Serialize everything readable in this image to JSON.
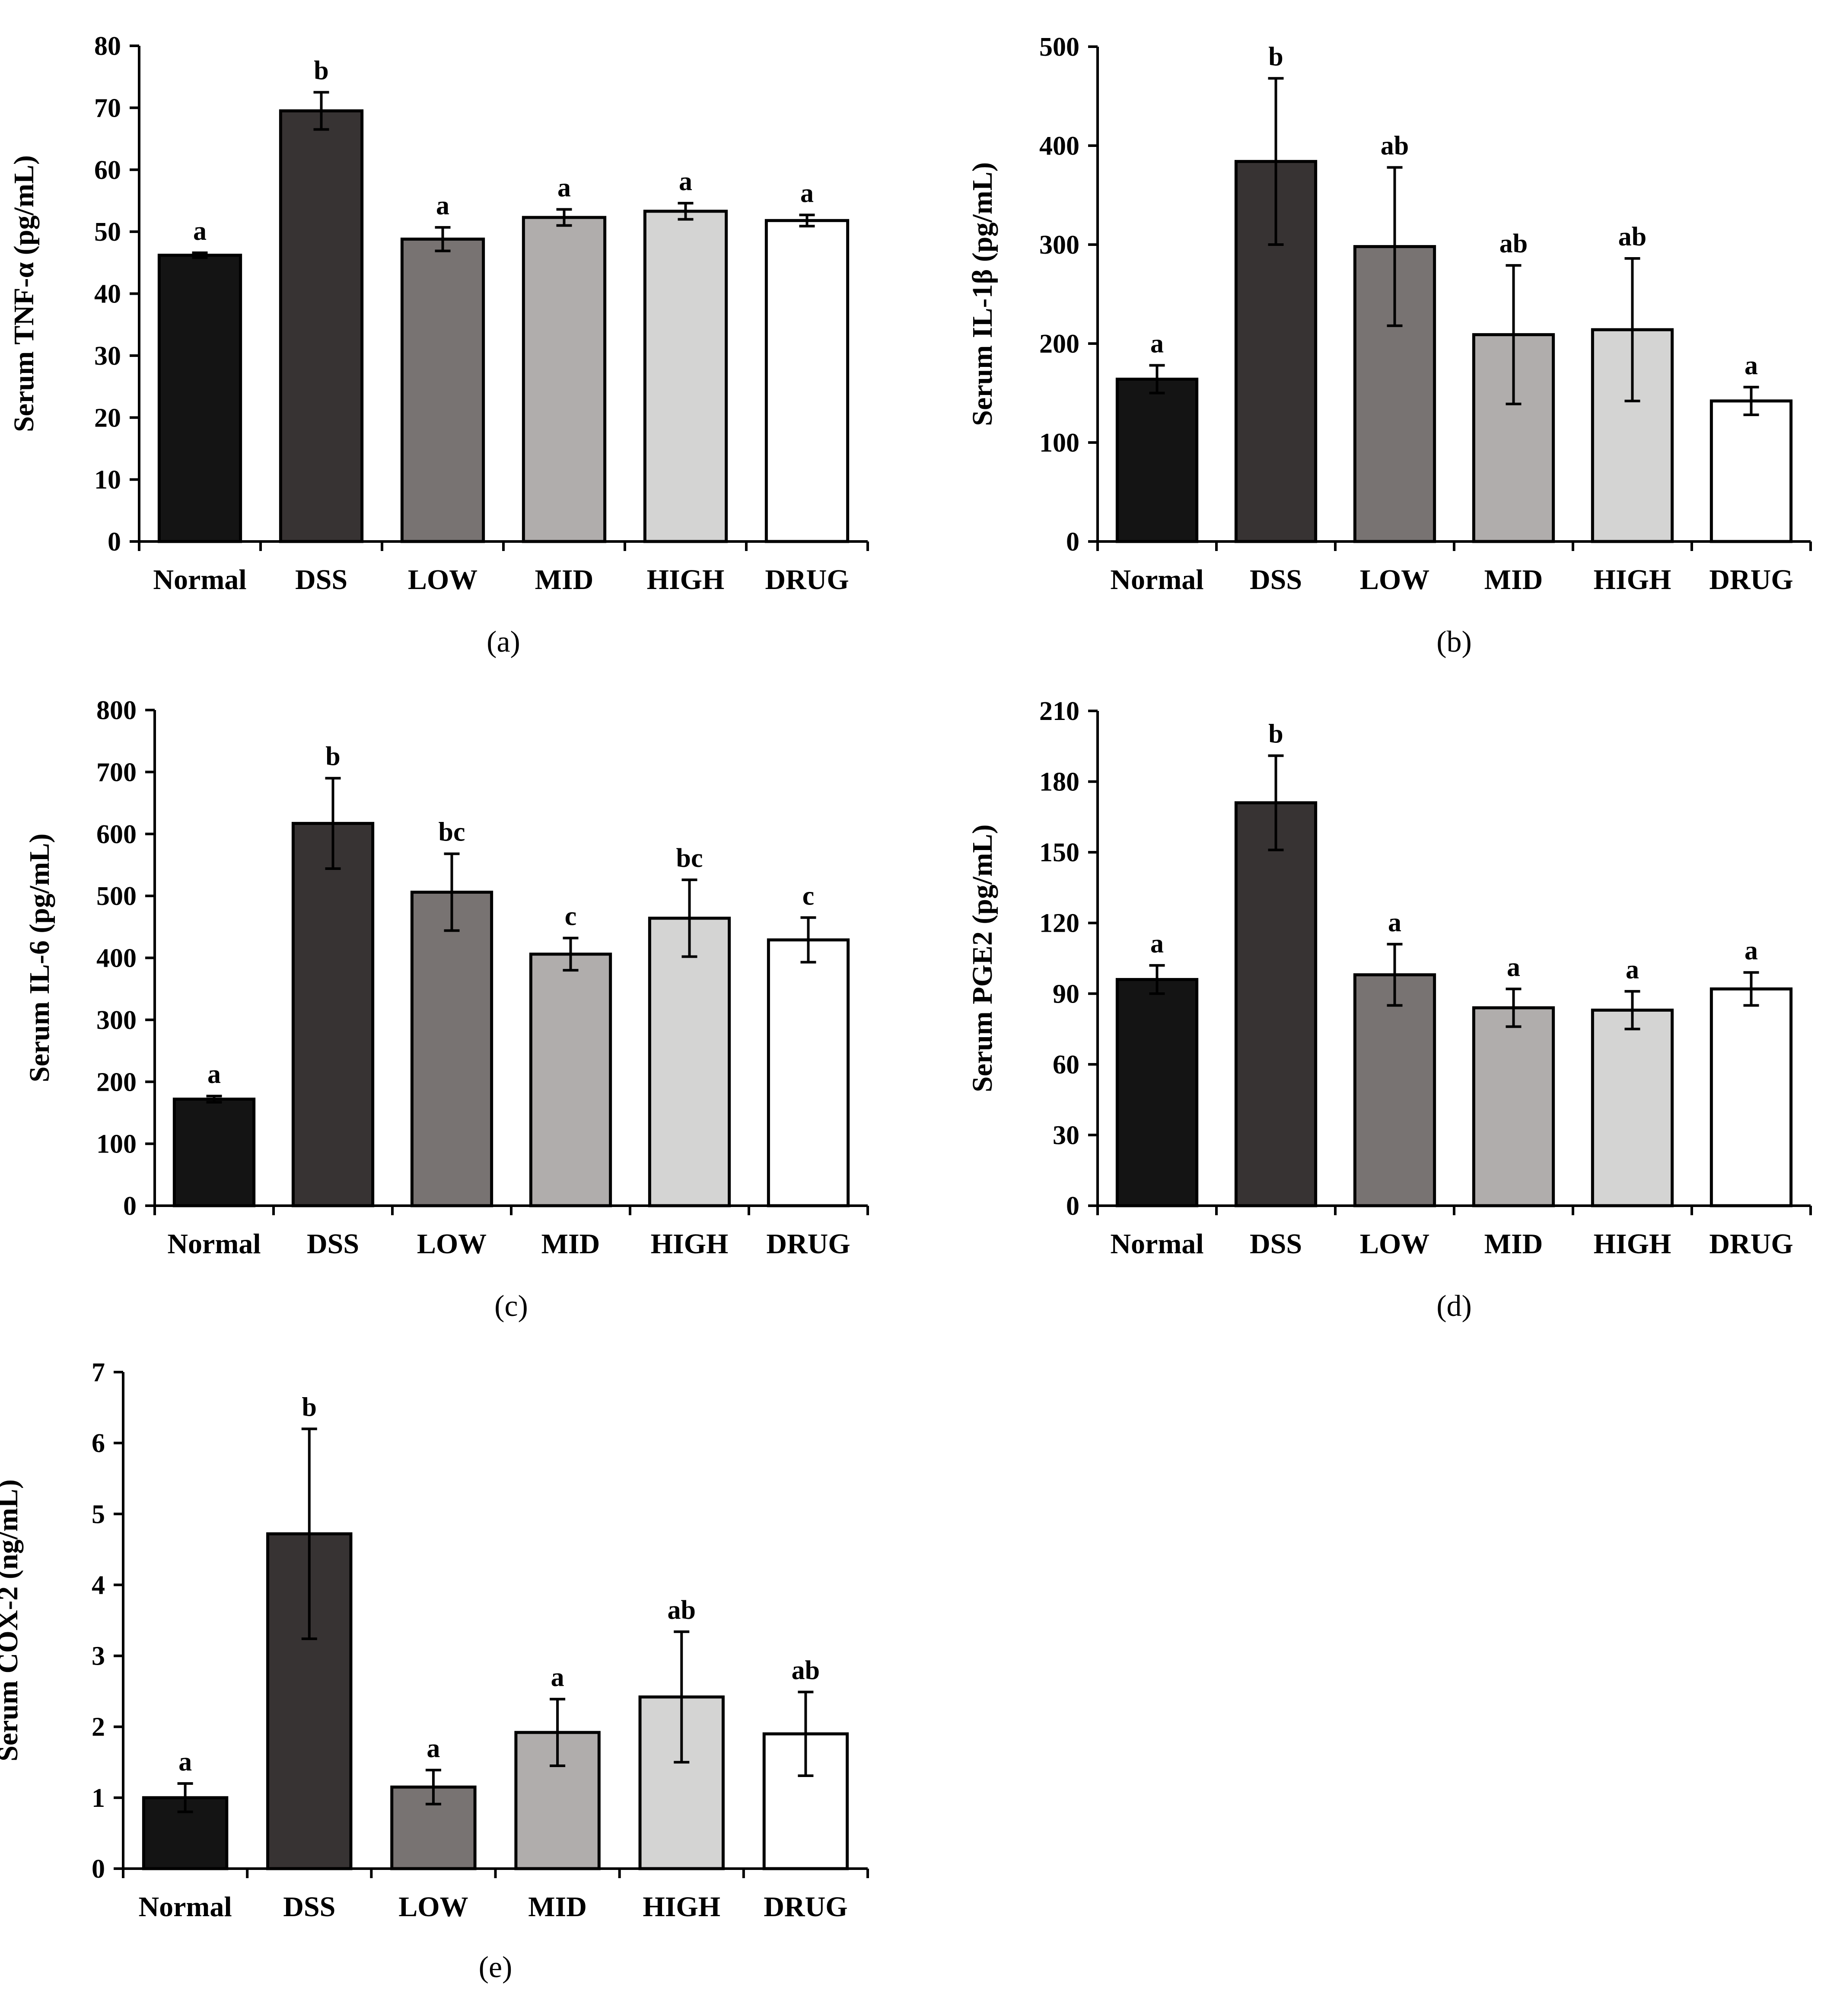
{
  "figure": {
    "bar_colors": [
      "#141414",
      "#373333",
      "#787372",
      "#b0adac",
      "#d4d4d3",
      "#ffffff"
    ],
    "outline_color": "#000000"
  },
  "chart_data": [
    {
      "type": "bar",
      "panel": "(a)",
      "ylabel": "Serum TNF-α (pg/mL)",
      "categories": [
        "Normal",
        "DSS",
        "LOW",
        "MID",
        "HIGH",
        "DRUG"
      ],
      "values": [
        46.2,
        69.5,
        48.8,
        52.3,
        53.3,
        51.8
      ],
      "errors": [
        0.4,
        3.0,
        1.9,
        1.3,
        1.3,
        0.9
      ],
      "significance": [
        "a",
        "b",
        "a",
        "a",
        "a",
        "a"
      ],
      "ylim": [
        0,
        80
      ],
      "yticks": [
        "0",
        "10",
        "20",
        "30",
        "40",
        "50",
        "60",
        "70",
        "80"
      ]
    },
    {
      "type": "bar",
      "panel": "(b)",
      "ylabel": "Serum IL-1β (pg/mL)",
      "categories": [
        "Normal",
        "DSS",
        "LOW",
        "MID",
        "HIGH",
        "DRUG"
      ],
      "values": [
        164,
        384,
        298,
        209,
        214,
        142
      ],
      "errors": [
        14,
        84,
        80,
        70,
        72,
        14
      ],
      "significance": [
        "a",
        "b",
        "ab",
        "ab",
        "ab",
        "a"
      ],
      "ylim": [
        0,
        500
      ],
      "yticks": [
        "0",
        "100",
        "200",
        "300",
        "400",
        "500"
      ]
    },
    {
      "type": "bar",
      "panel": "(c)",
      "ylabel": "Serum IL-6 (pg/mL)",
      "categories": [
        "Normal",
        "DSS",
        "LOW",
        "MID",
        "HIGH",
        "DRUG"
      ],
      "values": [
        172,
        617,
        506,
        406,
        464,
        429
      ],
      "errors": [
        5,
        73,
        62,
        26,
        62,
        36
      ],
      "significance": [
        "a",
        "b",
        "bc",
        "c",
        "bc",
        "c"
      ],
      "ylim": [
        0,
        800
      ],
      "yticks": [
        "0",
        "100",
        "200",
        "300",
        "400",
        "500",
        "600",
        "700",
        "800"
      ]
    },
    {
      "type": "bar",
      "panel": "(d)",
      "ylabel": "Serum PGE2 (pg/mL)",
      "categories": [
        "Normal",
        "DSS",
        "LOW",
        "MID",
        "HIGH",
        "DRUG"
      ],
      "values": [
        96,
        171,
        98,
        84,
        83,
        92
      ],
      "errors": [
        6,
        20,
        13,
        8,
        8,
        7
      ],
      "significance": [
        "a",
        "b",
        "a",
        "a",
        "a",
        "a"
      ],
      "ylim": [
        0,
        210
      ],
      "yticks": [
        "0",
        "30",
        "60",
        "90",
        "120",
        "150",
        "180",
        "210"
      ]
    },
    {
      "type": "bar",
      "panel": "(e)",
      "ylabel": "Serum COX-2 (ng/mL)",
      "categories": [
        "Normal",
        "DSS",
        "LOW",
        "MID",
        "HIGH",
        "DRUG"
      ],
      "values": [
        1.0,
        4.72,
        1.15,
        1.92,
        2.42,
        1.9
      ],
      "errors": [
        0.2,
        1.48,
        0.24,
        0.47,
        0.92,
        0.59
      ],
      "significance": [
        "a",
        "b",
        "a",
        "a",
        "ab",
        "ab"
      ],
      "ylim": [
        0,
        7
      ],
      "yticks": [
        "0",
        "1",
        "2",
        "3",
        "4",
        "5",
        "6",
        "7"
      ]
    }
  ]
}
